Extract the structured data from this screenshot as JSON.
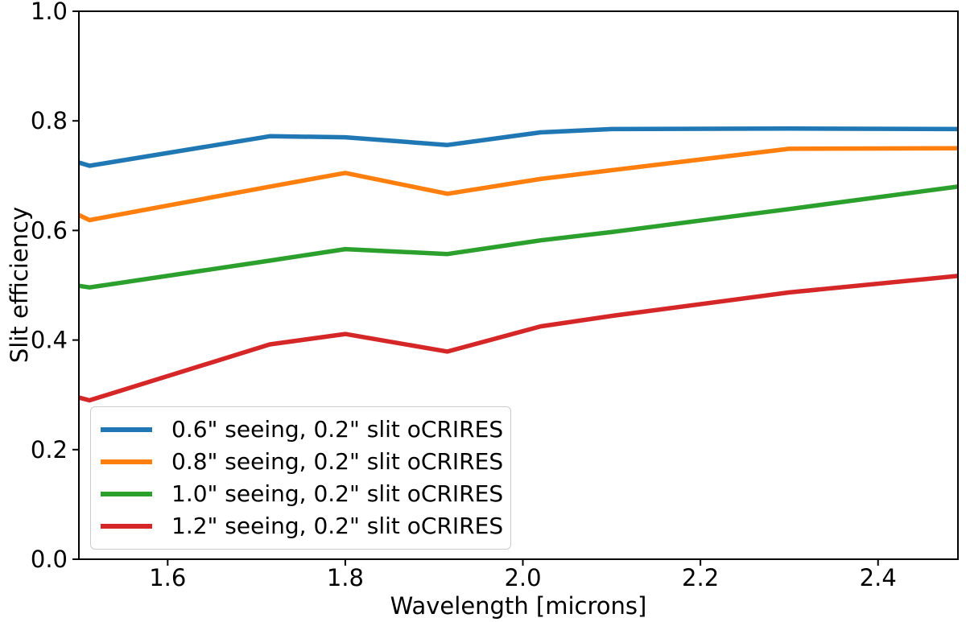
{
  "chart_data": {
    "type": "line",
    "title": "",
    "xlabel": "Wavelength [microns]",
    "ylabel": "Slit efficiency",
    "xlim": [
      1.5,
      2.49
    ],
    "ylim": [
      0.0,
      1.0
    ],
    "grid": false,
    "background": "#ffffff",
    "spine_color": "#000000",
    "legend_position": "lower left",
    "xticks": {
      "values": [
        1.6,
        1.8,
        2.0,
        2.2,
        2.4
      ],
      "labels": [
        "1.6",
        "1.8",
        "2.0",
        "2.2",
        "2.4"
      ]
    },
    "yticks": {
      "values": [
        0.0,
        0.2,
        0.4,
        0.6,
        0.8,
        1.0
      ],
      "labels": [
        "0.0",
        "0.2",
        "0.4",
        "0.6",
        "0.8",
        "1.0"
      ]
    },
    "x": [
      1.5,
      1.512,
      1.715,
      1.8,
      1.915,
      2.02,
      2.1,
      2.3,
      2.49
    ],
    "series": [
      {
        "name": "0.6\" seeing, 0.2\" slit oCRIRES",
        "color": "#1f77b4",
        "values": [
          0.724,
          0.718,
          0.772,
          0.77,
          0.756,
          0.779,
          0.785,
          0.786,
          0.785
        ]
      },
      {
        "name": "0.8\" seeing, 0.2\" slit oCRIRES",
        "color": "#ff7f0e",
        "values": [
          0.628,
          0.619,
          0.68,
          0.705,
          0.667,
          0.694,
          0.71,
          0.749,
          0.75
        ]
      },
      {
        "name": "1.0\" seeing, 0.2\" slit oCRIRES",
        "color": "#2ca02c",
        "values": [
          0.499,
          0.496,
          0.545,
          0.566,
          0.557,
          0.582,
          0.597,
          0.639,
          0.68
        ]
      },
      {
        "name": "1.2\" seeing, 0.2\" slit oCRIRES",
        "color": "#d62728",
        "values": [
          0.295,
          0.29,
          0.392,
          0.411,
          0.379,
          0.425,
          0.444,
          0.487,
          0.517
        ]
      }
    ]
  }
}
